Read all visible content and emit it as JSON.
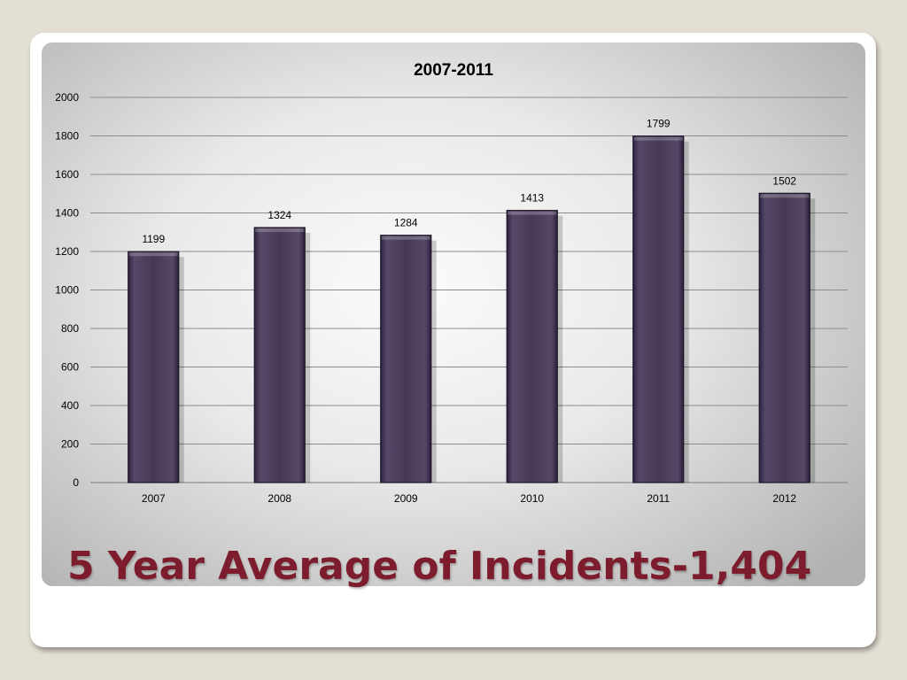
{
  "slide": {
    "headline": "5 Year Average of Incidents-1,404"
  },
  "chart_data": {
    "type": "bar",
    "title": "2007-2011",
    "categories": [
      "2007",
      "2008",
      "2009",
      "2010",
      "2011",
      "2012"
    ],
    "values": [
      1199,
      1324,
      1284,
      1413,
      1799,
      1502
    ],
    "ylim": [
      0,
      2000
    ],
    "yticks": [
      0,
      200,
      400,
      600,
      800,
      1000,
      1200,
      1400,
      1600,
      1800,
      2000
    ],
    "grid": true,
    "legend": "none",
    "bar_color": "#473857"
  }
}
